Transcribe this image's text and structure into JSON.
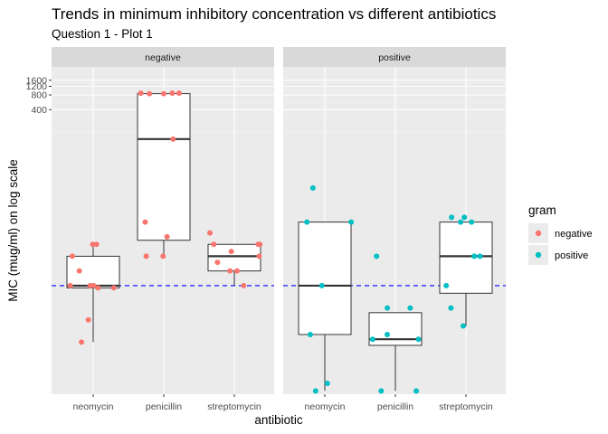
{
  "chart_data": {
    "type": "boxplot",
    "title": "Trends in minimum inhibitory concentration vs different antibiotics",
    "subtitle": "Question 1 - Plot 1",
    "xlabel": "antibiotic",
    "ylabel": "MIC (mug/ml) on log scale",
    "y_scale": "log10",
    "ylim": [
      0.0006,
      3000
    ],
    "y_ticks": [
      {
        "value": 400,
        "label": "400"
      },
      {
        "value": 800,
        "label": "800"
      },
      {
        "value": 1200,
        "label": "1200"
      },
      {
        "value": 1600,
        "label": "1600"
      }
    ],
    "reference_line": {
      "value": 0.1,
      "style": "dashed",
      "color": "#0000ff"
    },
    "categories": [
      "neomycin",
      "penicillin",
      "streptomycin"
    ],
    "facet_by": "gram",
    "facets": [
      {
        "label": "negative",
        "boxes": [
          {
            "category": "neomycin",
            "min": 0.007,
            "q1": 0.09,
            "median": 0.1,
            "q3": 0.4,
            "max": 0.7,
            "points": [
              0.7,
              0.7,
              0.4,
              0.2,
              0.1,
              0.1,
              0.1,
              0.09,
              0.09,
              0.02,
              0.007
            ]
          },
          {
            "category": "penicillin",
            "min": 0.4,
            "q1": 0.85,
            "median": 100,
            "q3": 850,
            "max": 850,
            "points": [
              870,
              870,
              870,
              850,
              850,
              100,
              2,
              1,
              0.4,
              0.4
            ]
          },
          {
            "category": "streptomycin",
            "min": 0.1,
            "q1": 0.2,
            "median": 0.4,
            "q3": 0.7,
            "max": 0.7,
            "points": [
              1.2,
              0.7,
              0.7,
              0.7,
              0.5,
              0.4,
              0.3,
              0.2,
              0.2,
              0.1
            ]
          }
        ]
      },
      {
        "label": "positive",
        "boxes": [
          {
            "category": "neomycin",
            "min": 0.0007,
            "q1": 0.01,
            "median": 0.1,
            "q3": 2,
            "max": 2,
            "points": [
              10,
              2,
              2,
              0.1,
              0.01,
              0.001,
              0.0007
            ]
          },
          {
            "category": "penicillin",
            "min": 0.0007,
            "q1": 0.006,
            "median": 0.008,
            "q3": 0.028,
            "max": 0.028,
            "points": [
              0.4,
              0.035,
              0.035,
              0.01,
              0.008,
              0.008,
              0.0007,
              0.0007
            ]
          },
          {
            "category": "streptomycin",
            "min": 0.015,
            "q1": 0.07,
            "median": 0.4,
            "q3": 2,
            "max": 2,
            "points": [
              2.5,
              2.5,
              2,
              2,
              0.4,
              0.4,
              0.1,
              0.035,
              0.015
            ]
          }
        ]
      }
    ],
    "legend": {
      "title": "gram",
      "position": "right",
      "entries": [
        {
          "label": "negative",
          "color": "#F8766D"
        },
        {
          "label": "positive",
          "color": "#00BFC4"
        }
      ]
    },
    "grid": true
  }
}
